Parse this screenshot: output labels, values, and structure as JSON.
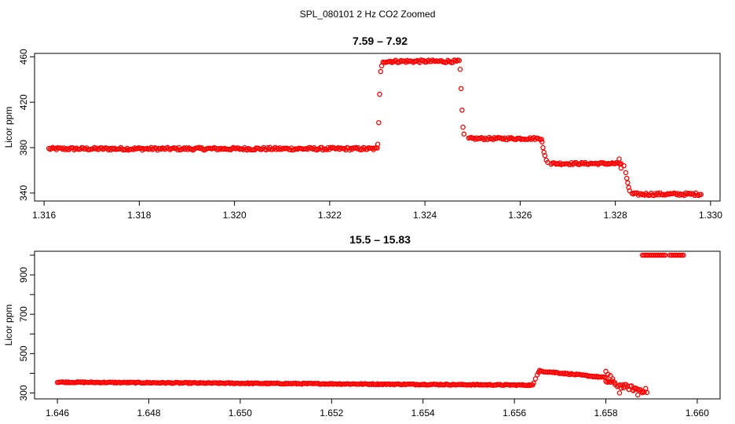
{
  "figure": {
    "title": "SPL_080101  2 Hz CO2 Zoomed"
  },
  "chart_data": [
    {
      "type": "scatter",
      "title": "7.59 – 7.92",
      "xlabel": "",
      "ylabel": "Licor ppm",
      "xlim": [
        1.3158,
        1.3302
      ],
      "ylim": [
        333,
        463
      ],
      "xticks": [
        1.316,
        1.318,
        1.32,
        1.322,
        1.324,
        1.326,
        1.328,
        1.33
      ],
      "xtick_labels": [
        "1.316",
        "1.318",
        "1.320",
        "1.322",
        "1.324",
        "1.326",
        "1.328",
        "1.330"
      ],
      "yticks": [
        340,
        380,
        420,
        460
      ],
      "ytick_labels": [
        "340",
        "380",
        "420",
        "460"
      ],
      "grid": false,
      "marker": "open-circle",
      "color": "#ff0000",
      "series": [
        {
          "segments": [
            {
              "x0": 1.3161,
              "x1": 1.323,
              "y": 379,
              "noise": 1.2
            },
            {
              "x0": 1.32312,
              "x1": 1.32472,
              "y": 456,
              "noise": 1.2
            },
            {
              "x0": 1.32492,
              "x1": 1.32645,
              "y": 388,
              "noise": 1.0
            },
            {
              "x0": 1.32665,
              "x1": 1.32812,
              "y": 366,
              "noise": 1.0
            },
            {
              "x0": 1.32835,
              "x1": 1.3298,
              "y": 339,
              "noise": 1.2
            }
          ],
          "transitions": [
            {
              "x": [
                1.32301,
                1.32303,
                1.32305,
                1.32307,
                1.32309
              ],
              "y": [
                383,
                402,
                427,
                447,
                452
              ]
            },
            {
              "x": [
                1.32474,
                1.32476,
                1.32478,
                1.3248,
                1.32482
              ],
              "y": [
                449,
                432,
                413,
                398,
                392
              ]
            },
            {
              "x": [
                1.32646,
                1.32648,
                1.3265,
                1.32652,
                1.32655,
                1.32658
              ],
              "y": [
                385,
                380,
                376,
                373,
                369,
                367
              ]
            },
            {
              "x": [
                1.32808,
                1.32812,
                1.32818,
                1.32822,
                1.32824,
                1.32826,
                1.32828,
                1.3283
              ],
              "y": [
                370,
                362,
                364,
                358,
                353,
                349,
                345,
                342
              ]
            }
          ]
        }
      ]
    },
    {
      "type": "scatter",
      "title": "15.5 – 15.83",
      "xlabel": "",
      "ylabel": "Licor ppm",
      "xlim": [
        1.6455,
        1.6605
      ],
      "ylim": [
        270,
        1020
      ],
      "xticks": [
        1.646,
        1.648,
        1.65,
        1.652,
        1.654,
        1.656,
        1.658,
        1.66
      ],
      "xtick_labels": [
        "1.646",
        "1.648",
        "1.650",
        "1.652",
        "1.654",
        "1.656",
        "1.658",
        "1.660"
      ],
      "yticks": [
        300,
        500,
        700,
        900
      ],
      "ytick_labels": [
        "300",
        "500",
        "700",
        "900"
      ],
      "yminor_ticks": [
        400,
        600,
        800,
        1000
      ],
      "grid": false,
      "marker": "open-circle",
      "color": "#ff0000",
      "series": [
        {
          "segments": [
            {
              "x0": 1.646,
              "x1": 1.6564,
              "y0": 355,
              "y1": 340,
              "noise": 2.5
            },
            {
              "x0": 1.65655,
              "x1": 1.658,
              "y0": 412,
              "y1": 378,
              "noise": 3
            },
            {
              "x0": 1.658,
              "x1": 1.6582,
              "y0": 360,
              "y1": 345,
              "noise": 12
            },
            {
              "x0": 1.65825,
              "x1": 1.6589,
              "y0": 340,
              "y1": 310,
              "noise": 12
            },
            {
              "x0": 1.6588,
              "x1": 1.6593,
              "y": 1000,
              "noise": 0
            },
            {
              "x0": 1.6594,
              "x1": 1.6597,
              "y": 1000,
              "noise": 0
            }
          ],
          "transitions": [
            {
              "x": [
                1.65642,
                1.65646,
                1.6565,
                1.65653
              ],
              "y": [
                350,
                372,
                392,
                405
              ]
            },
            {
              "x": [
                1.658,
                1.65805,
                1.6581,
                1.65815,
                1.6582
              ],
              "y": [
                410,
                395,
                388,
                372,
                352
              ]
            },
            {
              "x": [
                1.6583,
                1.6584,
                1.6585,
                1.6586,
                1.6587,
                1.6588
              ],
              "y": [
                300,
                335,
                318,
                312,
                290,
                302
              ]
            }
          ]
        }
      ]
    }
  ]
}
